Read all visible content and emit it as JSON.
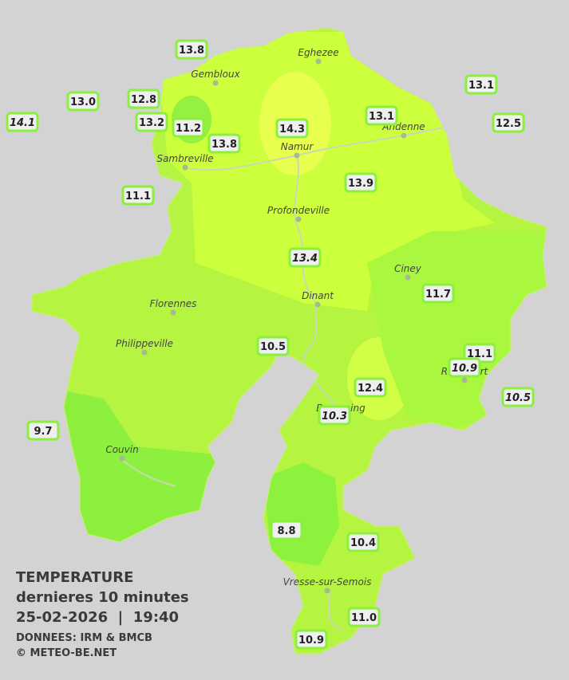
{
  "legend": {
    "title": "TEMPERATURE",
    "subtitle": "dernieres 10 minutes",
    "datetime": "25-02-2026  |  19:40",
    "source": "DONNEES: IRM & BMCB",
    "copyright": "© METEO-BE.NET"
  },
  "cities": [
    "Eghezee",
    "Gembloux",
    "Andenne",
    "Namur",
    "Sambreville",
    "Profondeville",
    "Ciney",
    "Dinant",
    "Florennes",
    "Philippeville",
    "Beauraing",
    "Rochefort",
    "Couvin",
    "Vresse-sur-Semois"
  ],
  "stations": [
    "13.8",
    "13.0",
    "12.8",
    "14.1",
    "13.2",
    "11.2",
    "13.8",
    "14.3",
    "13.1",
    "13.1",
    "12.5",
    "13.9",
    "11.1",
    "13.4",
    "11.7",
    "10.5",
    "11.1",
    "10.9",
    "12.4",
    "10.5",
    "10.3",
    "9.7",
    "8.8",
    "10.4",
    "11.0",
    "10.9"
  ]
}
